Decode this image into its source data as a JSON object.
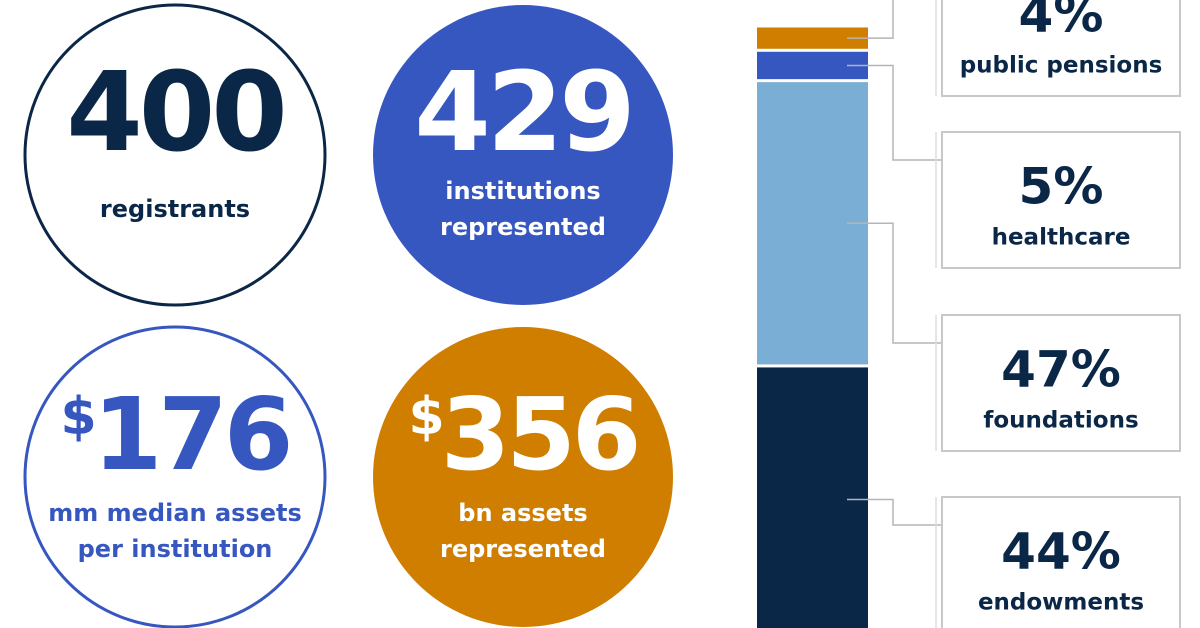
{
  "stats": [
    {
      "number": "400",
      "caption": [
        "registrants"
      ]
    },
    {
      "number": "429",
      "caption": [
        "institutions",
        "represented"
      ]
    },
    {
      "prefix": "$",
      "number": "176",
      "caption": [
        "mm median assets",
        "per institution"
      ]
    },
    {
      "prefix": "$",
      "number": "356",
      "caption": [
        "bn assets",
        "represented"
      ]
    }
  ],
  "chart_data": {
    "type": "bar",
    "stacked": true,
    "categories": [
      null
    ],
    "ylim": [
      0,
      100
    ],
    "series": [
      {
        "name": "endowments",
        "color": "#0b2747",
        "values": [
          44
        ],
        "value_labels": [
          "44%"
        ]
      },
      {
        "name": "foundations",
        "color": "#7aaed4",
        "values": [
          47
        ],
        "value_labels": [
          "47%"
        ]
      },
      {
        "name": "healthcare",
        "color": "#3656c0",
        "values": [
          5
        ],
        "value_labels": [
          "5%"
        ]
      },
      {
        "name": "public pensions",
        "color": "#cf7e00",
        "values": [
          4
        ],
        "value_labels": [
          "4%"
        ]
      }
    ]
  }
}
